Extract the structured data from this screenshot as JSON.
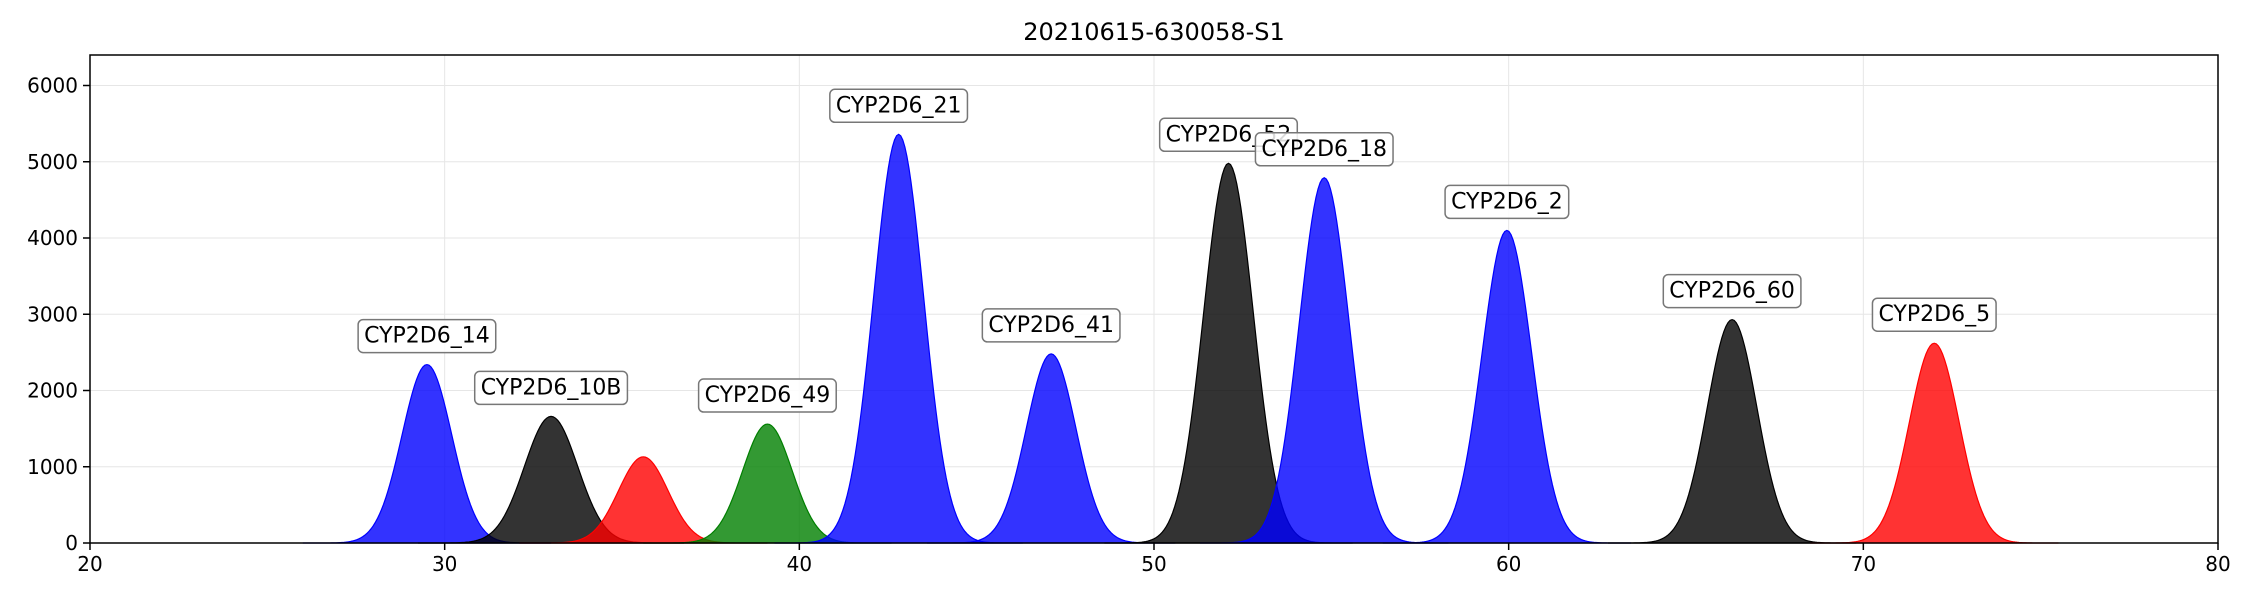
{
  "chart_data": {
    "type": "area",
    "title": "20210615-630058-S1",
    "xlabel": "",
    "ylabel": "",
    "xlim": [
      20,
      80
    ],
    "ylim": [
      0,
      6400
    ],
    "xticks": [
      20,
      30,
      40,
      50,
      60,
      70,
      80
    ],
    "yticks": [
      0,
      1000,
      2000,
      3000,
      4000,
      5000,
      6000
    ],
    "grid": true,
    "peaks": [
      {
        "label": "CYP2D6_14",
        "x": 29.5,
        "y": 2340,
        "sigma": 0.7,
        "color": "#0000ff",
        "alpha": 0.8
      },
      {
        "label": "CYP2D6_10B",
        "x": 33.0,
        "y": 1660,
        "sigma": 0.75,
        "color": "#000000",
        "alpha": 0.8
      },
      {
        "label": "",
        "x": 35.6,
        "y": 1130,
        "sigma": 0.7,
        "color": "#ff0000",
        "alpha": 0.8
      },
      {
        "label": "CYP2D6_49",
        "x": 39.1,
        "y": 1560,
        "sigma": 0.7,
        "color": "#007f00",
        "alpha": 0.8
      },
      {
        "label": "CYP2D6_21",
        "x": 42.8,
        "y": 5360,
        "sigma": 0.7,
        "color": "#0000ff",
        "alpha": 0.8
      },
      {
        "label": "CYP2D6_41",
        "x": 47.1,
        "y": 2480,
        "sigma": 0.7,
        "color": "#0000ff",
        "alpha": 0.8
      },
      {
        "label": "CYP2D6_52",
        "x": 52.1,
        "y": 4980,
        "sigma": 0.7,
        "color": "#000000",
        "alpha": 0.8
      },
      {
        "label": "CYP2D6_18",
        "x": 54.8,
        "y": 4790,
        "sigma": 0.7,
        "color": "#0000ff",
        "alpha": 0.8
      },
      {
        "label": "CYP2D6_2",
        "x": 59.95,
        "y": 4100,
        "sigma": 0.7,
        "color": "#0000ff",
        "alpha": 0.8
      },
      {
        "label": "CYP2D6_60",
        "x": 66.3,
        "y": 2930,
        "sigma": 0.7,
        "color": "#000000",
        "alpha": 0.8
      },
      {
        "label": "CYP2D6_5",
        "x": 72.0,
        "y": 2620,
        "sigma": 0.7,
        "color": "#ff0000",
        "alpha": 0.8
      }
    ]
  }
}
